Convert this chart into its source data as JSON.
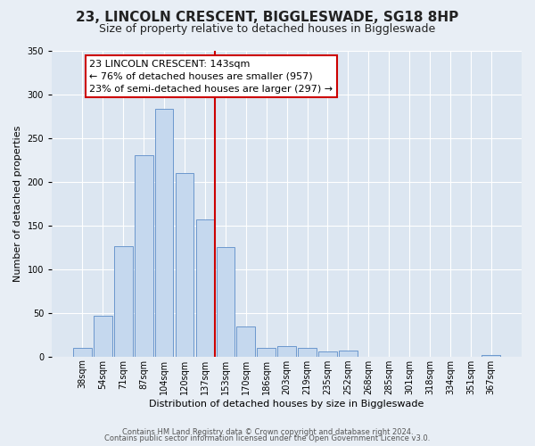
{
  "title": "23, LINCOLN CRESCENT, BIGGLESWADE, SG18 8HP",
  "subtitle": "Size of property relative to detached houses in Biggleswade",
  "xlabel": "Distribution of detached houses by size in Biggleswade",
  "ylabel": "Number of detached properties",
  "bar_labels": [
    "38sqm",
    "54sqm",
    "71sqm",
    "87sqm",
    "104sqm",
    "120sqm",
    "137sqm",
    "153sqm",
    "170sqm",
    "186sqm",
    "203sqm",
    "219sqm",
    "235sqm",
    "252sqm",
    "268sqm",
    "285sqm",
    "301sqm",
    "318sqm",
    "334sqm",
    "351sqm",
    "367sqm"
  ],
  "bar_heights": [
    10,
    47,
    126,
    230,
    283,
    210,
    157,
    125,
    34,
    10,
    12,
    10,
    6,
    7,
    0,
    0,
    0,
    0,
    0,
    0,
    2
  ],
  "bar_color": "#c5d8ee",
  "bar_edge_color": "#5b8cc8",
  "vline_x": 6.5,
  "vline_color": "#cc0000",
  "annotation_title": "23 LINCOLN CRESCENT: 143sqm",
  "annotation_line1": "← 76% of detached houses are smaller (957)",
  "annotation_line2": "23% of semi-detached houses are larger (297) →",
  "annotation_box_facecolor": "#ffffff",
  "annotation_box_edgecolor": "#cc0000",
  "ylim": [
    0,
    350
  ],
  "yticks": [
    0,
    50,
    100,
    150,
    200,
    250,
    300,
    350
  ],
  "fig_facecolor": "#e8eef5",
  "ax_facecolor": "#dce6f1",
  "footer1": "Contains HM Land Registry data © Crown copyright and database right 2024.",
  "footer2": "Contains public sector information licensed under the Open Government Licence v3.0.",
  "title_fontsize": 11,
  "subtitle_fontsize": 9,
  "axis_label_fontsize": 8,
  "tick_fontsize": 7,
  "annotation_fontsize": 8,
  "footer_fontsize": 6
}
